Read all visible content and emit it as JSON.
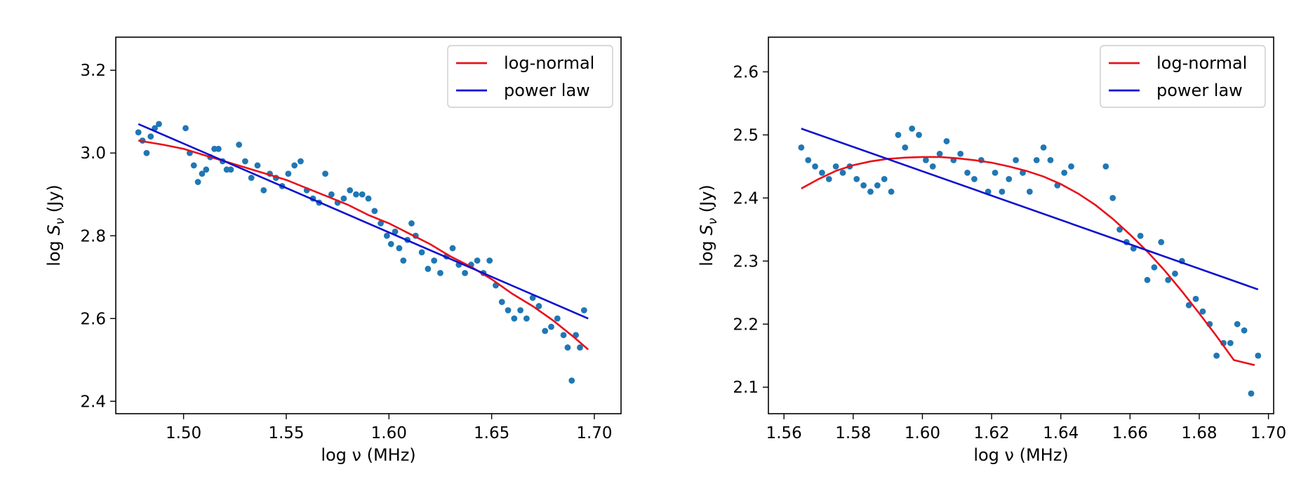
{
  "chart_data": [
    {
      "type": "scatter",
      "xlabel": "log ν (MHz)",
      "ylabel_parts": [
        "log ",
        "S",
        "ν",
        " (Jy)"
      ],
      "xlim": [
        1.467,
        1.713
      ],
      "ylim": [
        2.37,
        3.28
      ],
      "xticks": [
        1.5,
        1.55,
        1.6,
        1.65,
        1.7
      ],
      "xtick_labels": [
        "1.50",
        "1.55",
        "1.60",
        "1.65",
        "1.70"
      ],
      "yticks": [
        2.4,
        2.6,
        2.8,
        3.0,
        3.2
      ],
      "ytick_labels": [
        "2.4",
        "2.6",
        "2.8",
        "3.0",
        "3.2"
      ],
      "legend_position": "top-right",
      "grid": false,
      "points": {
        "color": "#1f77b4",
        "x": [
          1.478,
          1.48,
          1.482,
          1.484,
          1.486,
          1.488,
          1.501,
          1.503,
          1.505,
          1.507,
          1.509,
          1.511,
          1.513,
          1.515,
          1.517,
          1.519,
          1.521,
          1.523,
          1.527,
          1.53,
          1.533,
          1.536,
          1.539,
          1.542,
          1.545,
          1.548,
          1.551,
          1.554,
          1.557,
          1.56,
          1.563,
          1.566,
          1.569,
          1.572,
          1.575,
          1.578,
          1.581,
          1.584,
          1.587,
          1.59,
          1.593,
          1.596,
          1.599,
          1.601,
          1.603,
          1.605,
          1.607,
          1.609,
          1.611,
          1.613,
          1.616,
          1.619,
          1.622,
          1.625,
          1.628,
          1.631,
          1.634,
          1.637,
          1.64,
          1.643,
          1.646,
          1.649,
          1.652,
          1.655,
          1.658,
          1.661,
          1.664,
          1.667,
          1.67,
          1.673,
          1.676,
          1.679,
          1.682,
          1.685,
          1.687,
          1.689,
          1.691,
          1.693,
          1.695
        ],
        "y": [
          3.05,
          3.03,
          3.0,
          3.04,
          3.06,
          3.07,
          3.06,
          3.0,
          2.97,
          2.93,
          2.95,
          2.96,
          2.99,
          3.01,
          3.01,
          2.98,
          2.96,
          2.96,
          3.02,
          2.98,
          2.94,
          2.97,
          2.91,
          2.95,
          2.94,
          2.92,
          2.95,
          2.97,
          2.98,
          2.91,
          2.89,
          2.88,
          2.95,
          2.9,
          2.88,
          2.89,
          2.91,
          2.9,
          2.9,
          2.89,
          2.86,
          2.83,
          2.8,
          2.78,
          2.81,
          2.77,
          2.74,
          2.79,
          2.83,
          2.8,
          2.76,
          2.72,
          2.74,
          2.71,
          2.75,
          2.77,
          2.73,
          2.71,
          2.73,
          2.74,
          2.71,
          2.74,
          2.68,
          2.64,
          2.62,
          2.6,
          2.62,
          2.6,
          2.65,
          2.63,
          2.57,
          2.58,
          2.6,
          2.56,
          2.53,
          2.45,
          2.56,
          2.53,
          2.62
        ]
      },
      "series": [
        {
          "name": "log-normal",
          "color": "#e8101a",
          "x": [
            1.478,
            1.49,
            1.5,
            1.51,
            1.52,
            1.53,
            1.54,
            1.55,
            1.56,
            1.57,
            1.58,
            1.59,
            1.6,
            1.61,
            1.62,
            1.63,
            1.64,
            1.65,
            1.66,
            1.67,
            1.68,
            1.69,
            1.697
          ],
          "y": [
            3.03,
            3.02,
            3.01,
            2.995,
            2.98,
            2.965,
            2.95,
            2.935,
            2.915,
            2.895,
            2.875,
            2.85,
            2.83,
            2.805,
            2.78,
            2.75,
            2.725,
            2.695,
            2.66,
            2.63,
            2.595,
            2.555,
            2.525
          ]
        },
        {
          "name": "power law",
          "color": "#0f0fd0",
          "x": [
            1.478,
            1.697
          ],
          "y": [
            3.07,
            2.6
          ]
        }
      ]
    },
    {
      "type": "scatter",
      "xlabel": "log ν (MHz)",
      "ylabel_parts": [
        "log ",
        "S",
        "ν",
        " (Jy)"
      ],
      "xlim": [
        1.5555,
        1.7015
      ],
      "ylim": [
        2.058,
        2.655
      ],
      "xticks": [
        1.56,
        1.58,
        1.6,
        1.62,
        1.64,
        1.66,
        1.68,
        1.7
      ],
      "xtick_labels": [
        "1.56",
        "1.58",
        "1.60",
        "1.62",
        "1.64",
        "1.66",
        "1.68",
        "1.70"
      ],
      "yticks": [
        2.1,
        2.2,
        2.3,
        2.4,
        2.5,
        2.6
      ],
      "ytick_labels": [
        "2.1",
        "2.2",
        "2.3",
        "2.4",
        "2.5",
        "2.6"
      ],
      "legend_position": "top-right",
      "grid": false,
      "points": {
        "color": "#1f77b4",
        "x": [
          1.565,
          1.567,
          1.569,
          1.571,
          1.573,
          1.575,
          1.577,
          1.579,
          1.581,
          1.583,
          1.585,
          1.587,
          1.589,
          1.591,
          1.593,
          1.595,
          1.597,
          1.599,
          1.601,
          1.603,
          1.605,
          1.607,
          1.609,
          1.611,
          1.613,
          1.615,
          1.617,
          1.619,
          1.621,
          1.623,
          1.625,
          1.627,
          1.629,
          1.631,
          1.633,
          1.635,
          1.637,
          1.639,
          1.641,
          1.643,
          1.653,
          1.655,
          1.657,
          1.659,
          1.661,
          1.663,
          1.665,
          1.667,
          1.669,
          1.671,
          1.673,
          1.675,
          1.677,
          1.679,
          1.681,
          1.683,
          1.685,
          1.687,
          1.689,
          1.691,
          1.693,
          1.695,
          1.697
        ],
        "y": [
          2.48,
          2.46,
          2.45,
          2.44,
          2.43,
          2.45,
          2.44,
          2.45,
          2.43,
          2.42,
          2.41,
          2.42,
          2.43,
          2.41,
          2.5,
          2.48,
          2.51,
          2.5,
          2.46,
          2.45,
          2.47,
          2.49,
          2.46,
          2.47,
          2.44,
          2.43,
          2.46,
          2.41,
          2.44,
          2.41,
          2.43,
          2.46,
          2.44,
          2.41,
          2.46,
          2.48,
          2.46,
          2.42,
          2.44,
          2.45,
          2.45,
          2.4,
          2.35,
          2.33,
          2.32,
          2.34,
          2.27,
          2.29,
          2.33,
          2.27,
          2.28,
          2.3,
          2.23,
          2.24,
          2.22,
          2.2,
          2.15,
          2.17,
          2.17,
          2.2,
          2.19,
          2.09,
          2.15
        ]
      },
      "series": [
        {
          "name": "log-normal",
          "color": "#e8101a",
          "x": [
            1.565,
            1.57,
            1.575,
            1.58,
            1.585,
            1.59,
            1.595,
            1.6,
            1.605,
            1.61,
            1.615,
            1.62,
            1.625,
            1.63,
            1.635,
            1.64,
            1.645,
            1.65,
            1.655,
            1.66,
            1.665,
            1.67,
            1.675,
            1.68,
            1.685,
            1.69,
            1.696
          ],
          "y": [
            2.415,
            2.43,
            2.443,
            2.452,
            2.458,
            2.462,
            2.464,
            2.465,
            2.465,
            2.463,
            2.46,
            2.456,
            2.45,
            2.443,
            2.434,
            2.422,
            2.407,
            2.389,
            2.367,
            2.342,
            2.315,
            2.285,
            2.252,
            2.217,
            2.181,
            2.143,
            2.135
          ]
        },
        {
          "name": "power law",
          "color": "#0f0fd0",
          "x": [
            1.565,
            1.697
          ],
          "y": [
            2.51,
            2.255
          ]
        }
      ]
    }
  ]
}
